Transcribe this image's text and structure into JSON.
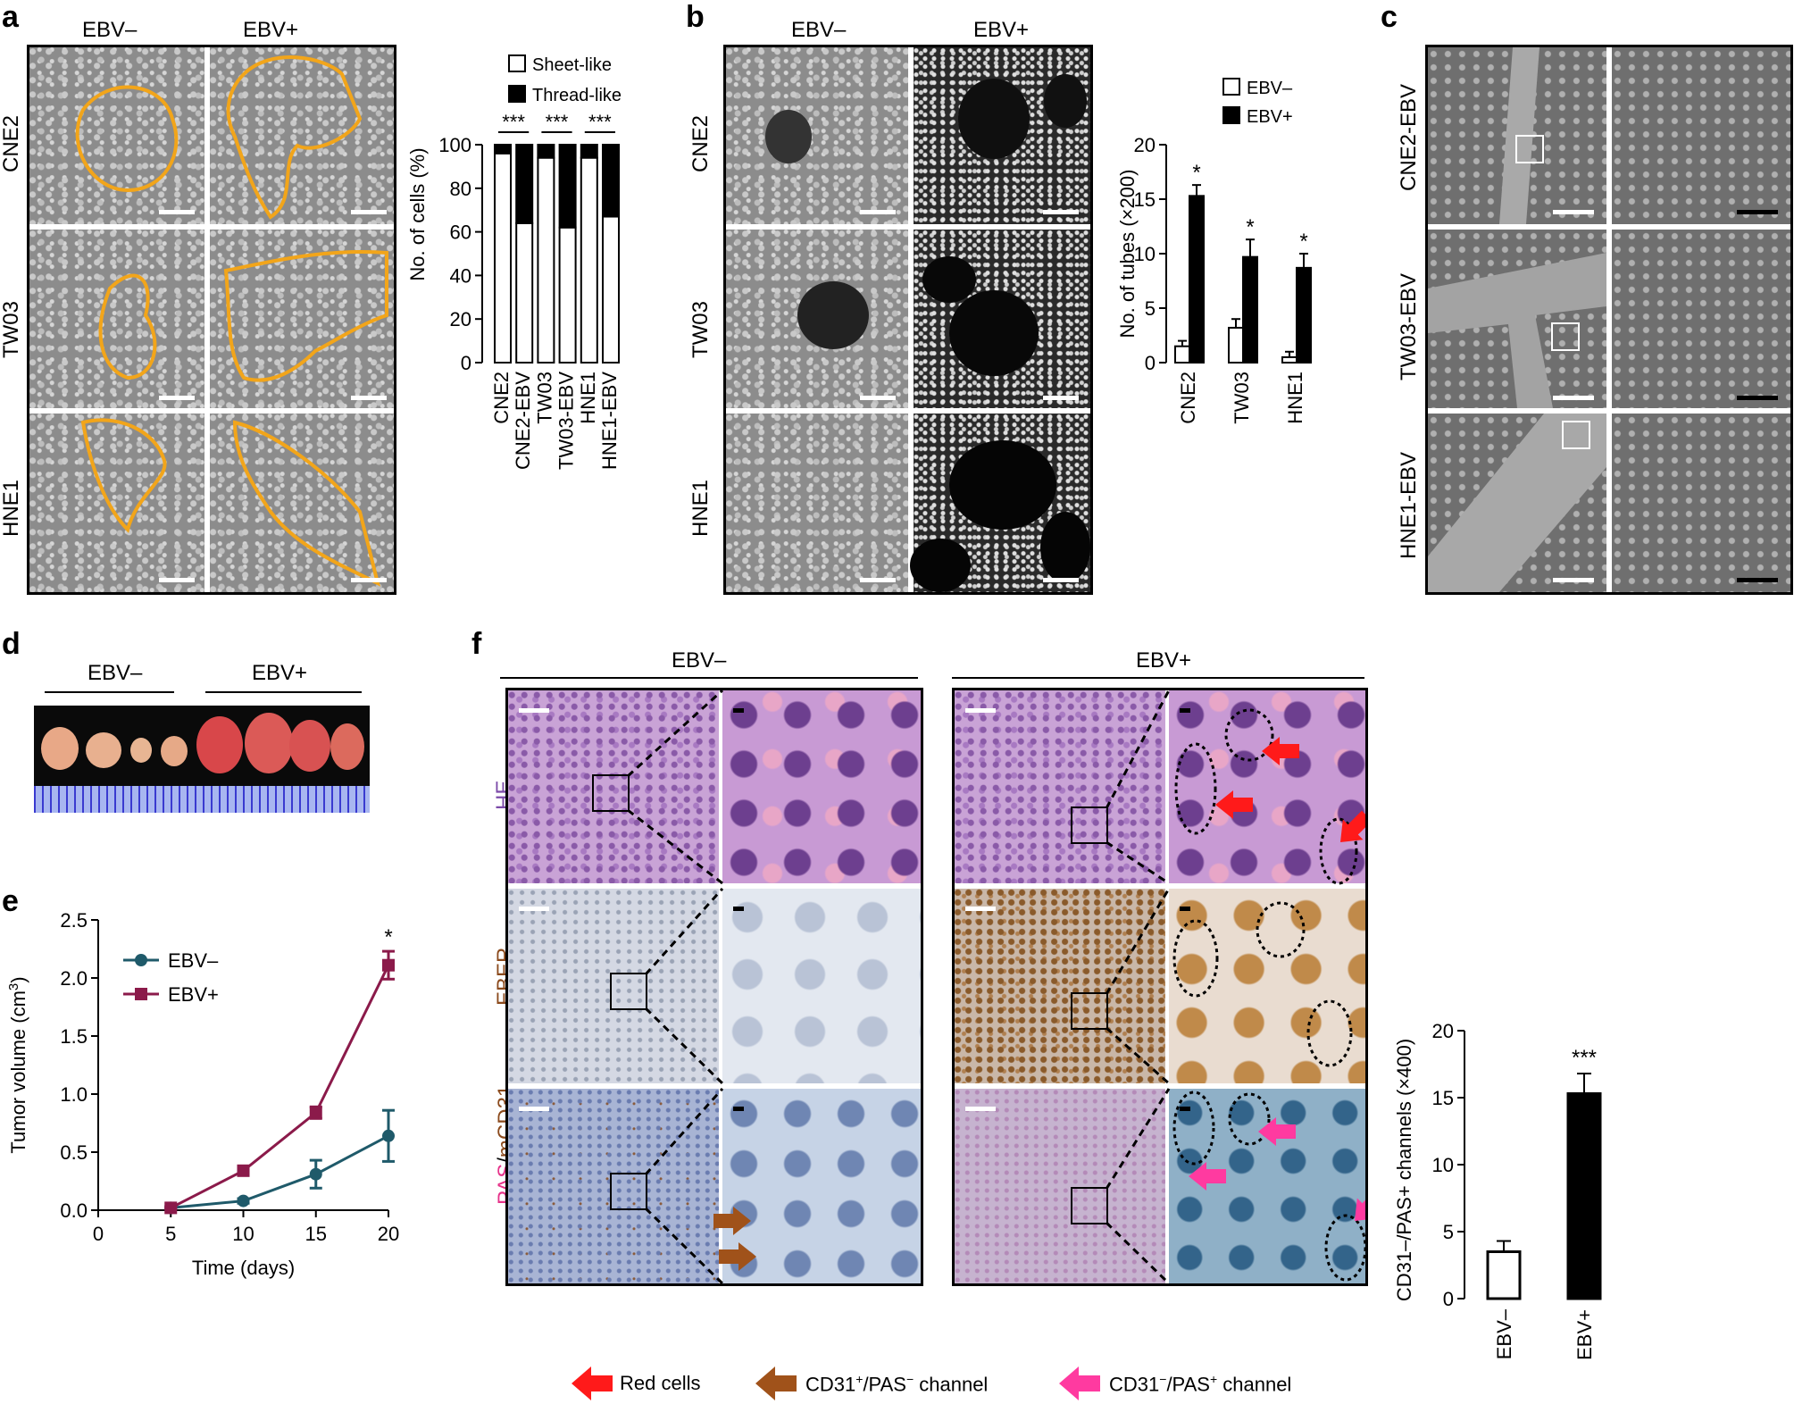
{
  "panels": {
    "a": {
      "label": "a",
      "columns": [
        "EBV–",
        "EBV+"
      ],
      "rows": [
        "CNE2",
        "TW03",
        "HNE1"
      ]
    },
    "b": {
      "label": "b",
      "columns": [
        "EBV–",
        "EBV+"
      ],
      "rows": [
        "CNE2",
        "TW03",
        "HNE1"
      ]
    },
    "c": {
      "label": "c",
      "rows": [
        "CNE2-EBV",
        "TW03-EBV",
        "HNE1-EBV"
      ]
    },
    "d": {
      "label": "d",
      "groups": [
        "EBV–",
        "EBV+"
      ]
    },
    "e": {
      "label": "e"
    },
    "f": {
      "label": "f",
      "groups": [
        "EBV–",
        "EBV+"
      ],
      "stains": [
        "HE",
        "EBER",
        "PAS/mCD31"
      ],
      "stain_colors": {
        "HE": "#7b4aa8",
        "EBER": "#8b4a1c",
        "PAS": "#e6338a",
        "mCD31": "#8b4a1c"
      },
      "stain_parts": [
        "PAS",
        "/",
        "mCD31"
      ]
    }
  },
  "legend_bottom": {
    "red": {
      "text": "Red cells",
      "color": "#ff1a1a"
    },
    "brown": {
      "text_parts": [
        "CD31",
        "+",
        "/PAS",
        "−",
        " channel"
      ],
      "color": "#a0521a"
    },
    "pink": {
      "text_parts": [
        "CD31",
        "−",
        "/PAS",
        "+",
        " channel"
      ],
      "color": "#ff3aa0"
    }
  },
  "chart_data": [
    {
      "id": "a-chart",
      "type": "bar",
      "stacked": true,
      "categories": [
        "CNE2",
        "CNE2-EBV",
        "TW03",
        "TW03-EBV",
        "HNE1",
        "HNE1-EBV"
      ],
      "series": [
        {
          "name": "Sheet-like",
          "values": [
            96,
            64,
            94,
            62,
            94,
            67
          ],
          "color": "#ffffff"
        },
        {
          "name": "Thread-like",
          "values": [
            4,
            36,
            6,
            38,
            6,
            33
          ],
          "color": "#000000"
        }
      ],
      "ylabel": "No. of cells (%)",
      "ylim": [
        0,
        100
      ],
      "yticks": [
        0,
        20,
        40,
        60,
        80,
        100
      ],
      "annotations": [
        "***",
        "***",
        "***"
      ],
      "legend": "top"
    },
    {
      "id": "b-chart",
      "type": "bar",
      "categories": [
        "CNE2",
        "TW03",
        "HNE1"
      ],
      "series": [
        {
          "name": "EBV–",
          "values": [
            1.5,
            3.2,
            0.5
          ],
          "errors": [
            0.5,
            0.8,
            0.5
          ],
          "color": "#ffffff"
        },
        {
          "name": "EBV+",
          "values": [
            15.3,
            9.7,
            8.7
          ],
          "errors": [
            1.0,
            1.6,
            1.3
          ],
          "color": "#000000"
        }
      ],
      "ylabel": "No. of tubes (×200)",
      "ylim": [
        0,
        20
      ],
      "yticks": [
        0,
        5,
        10,
        15,
        20
      ],
      "annotations": [
        "*",
        "*",
        "*"
      ],
      "legend": "top"
    },
    {
      "id": "e-chart",
      "type": "line",
      "x": [
        5,
        10,
        15,
        20
      ],
      "series": [
        {
          "name": "EBV–",
          "values": [
            0.02,
            0.08,
            0.31,
            0.64
          ],
          "errors": [
            0.01,
            0.02,
            0.12,
            0.22
          ],
          "color": "#1f5a6a",
          "marker": "circle"
        },
        {
          "name": "EBV+",
          "values": [
            0.02,
            0.34,
            0.84,
            2.11
          ],
          "errors": [
            0.01,
            0.02,
            0.05,
            0.12
          ],
          "color": "#8b1a4a",
          "marker": "square"
        }
      ],
      "xlabel": "Time (days)",
      "ylabel_parts": [
        "Tumor volume (cm",
        "3",
        ")"
      ],
      "xlim": [
        0,
        20
      ],
      "xticks": [
        0,
        5,
        10,
        15,
        20
      ],
      "ylim": [
        0,
        2.5
      ],
      "yticks": [
        "0.0",
        "0.5",
        "1.0",
        "1.5",
        "2.0",
        "2.5"
      ],
      "annotations": [
        "*"
      ],
      "legend": "top-left"
    },
    {
      "id": "f-chart",
      "type": "bar",
      "categories": [
        "EBV–",
        "EBV+"
      ],
      "values": [
        3.5,
        15.3
      ],
      "errors": [
        0.8,
        1.5
      ],
      "colors": [
        "#ffffff",
        "#000000"
      ],
      "ylabel": "CD31–/PAS+ channels (×400)",
      "ylim": [
        0,
        20
      ],
      "yticks": [
        0,
        5,
        10,
        15,
        20
      ],
      "annotations": [
        "***"
      ]
    }
  ]
}
